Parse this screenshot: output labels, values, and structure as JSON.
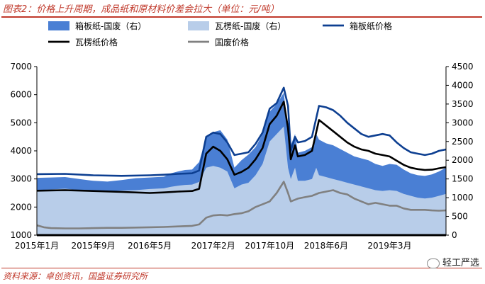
{
  "title": "图表2：价格上升周期，成品纸和原材料价差会拉大（单位：元/吨）",
  "source": "资料来源：卓创资讯，国盛证券研究所",
  "watermark": "轻工严选",
  "chart_data": {
    "type": "line",
    "x_months_from": "2015-01",
    "x_months_to": "2019-11",
    "x_ticks": [
      {
        "label": "2015年1月",
        "m": 0
      },
      {
        "label": "2015年9月",
        "m": 8
      },
      {
        "label": "2016年5月",
        "m": 16
      },
      {
        "label": "2017年2月",
        "m": 25
      },
      {
        "label": "2017年10月",
        "m": 33
      },
      {
        "label": "2018年6月",
        "m": 41
      },
      {
        "label": "2019年3月",
        "m": 50
      }
    ],
    "y_left": {
      "min": 1000,
      "max": 7000,
      "ticks": [
        1000,
        2000,
        3000,
        4000,
        5000,
        6000,
        7000
      ]
    },
    "y_right": {
      "min": 0,
      "max": 4500,
      "ticks": [
        0,
        500,
        1000,
        1500,
        2000,
        2500,
        3000,
        3500,
        4000,
        4500
      ]
    },
    "legend": {
      "placement": "top",
      "entries": [
        "箱板纸-国废（右）",
        "瓦楞纸-国废（右）",
        "箱板纸价格",
        "瓦楞纸价格",
        "国废价格"
      ]
    },
    "series": [
      {
        "name": "箱板纸-国废（右）",
        "kind": "area",
        "axis": "right",
        "color": "#4a7fd4",
        "points": [
          [
            0,
            1530
          ],
          [
            2,
            1540
          ],
          [
            4,
            1550
          ],
          [
            6,
            1500
          ],
          [
            8,
            1450
          ],
          [
            10,
            1430
          ],
          [
            12,
            1470
          ],
          [
            14,
            1520
          ],
          [
            16,
            1540
          ],
          [
            18,
            1560
          ],
          [
            19,
            1650
          ],
          [
            20,
            1700
          ],
          [
            21,
            1740
          ],
          [
            22,
            1750
          ],
          [
            23,
            1950
          ],
          [
            24,
            2600
          ],
          [
            25,
            2750
          ],
          [
            26,
            2800
          ],
          [
            27,
            2550
          ],
          [
            28,
            1800
          ],
          [
            29,
            2000
          ],
          [
            30,
            2150
          ],
          [
            31,
            2350
          ],
          [
            32,
            2700
          ],
          [
            33,
            3300
          ],
          [
            34,
            3500
          ],
          [
            35,
            3800
          ],
          [
            35.6,
            2800
          ],
          [
            36,
            2400
          ],
          [
            36.6,
            2700
          ],
          [
            37,
            2200
          ],
          [
            38,
            2250
          ],
          [
            39,
            2350
          ],
          [
            39.6,
            2700
          ],
          [
            40,
            2550
          ],
          [
            41,
            2450
          ],
          [
            42,
            2400
          ],
          [
            43,
            2300
          ],
          [
            44,
            2200
          ],
          [
            45,
            2100
          ],
          [
            46,
            2050
          ],
          [
            47,
            2000
          ],
          [
            48,
            1900
          ],
          [
            49,
            1850
          ],
          [
            50,
            1900
          ],
          [
            51,
            1880
          ],
          [
            52,
            1750
          ],
          [
            53,
            1650
          ],
          [
            54,
            1600
          ],
          [
            55,
            1580
          ],
          [
            56,
            1620
          ],
          [
            57,
            1700
          ],
          [
            58,
            1800
          ]
        ]
      },
      {
        "name": "瓦楞纸-国废（右）",
        "kind": "area",
        "axis": "right",
        "color": "#b8cde9",
        "points": [
          [
            0,
            1200
          ],
          [
            2,
            1220
          ],
          [
            4,
            1240
          ],
          [
            6,
            1200
          ],
          [
            8,
            1180
          ],
          [
            10,
            1170
          ],
          [
            12,
            1190
          ],
          [
            14,
            1200
          ],
          [
            16,
            1230
          ],
          [
            18,
            1250
          ],
          [
            19,
            1290
          ],
          [
            20,
            1320
          ],
          [
            21,
            1340
          ],
          [
            22,
            1350
          ],
          [
            23,
            1420
          ],
          [
            24,
            1800
          ],
          [
            25,
            1850
          ],
          [
            26,
            1800
          ],
          [
            27,
            1700
          ],
          [
            28,
            1250
          ],
          [
            29,
            1350
          ],
          [
            30,
            1400
          ],
          [
            31,
            1600
          ],
          [
            32,
            1900
          ],
          [
            33,
            2500
          ],
          [
            34,
            2700
          ],
          [
            35,
            2900
          ],
          [
            35.6,
            1800
          ],
          [
            36,
            1500
          ],
          [
            36.6,
            1800
          ],
          [
            37,
            1450
          ],
          [
            38,
            1450
          ],
          [
            39,
            1500
          ],
          [
            39.6,
            1800
          ],
          [
            40,
            1600
          ],
          [
            41,
            1550
          ],
          [
            42,
            1500
          ],
          [
            43,
            1450
          ],
          [
            44,
            1400
          ],
          [
            45,
            1350
          ],
          [
            46,
            1300
          ],
          [
            47,
            1250
          ],
          [
            48,
            1200
          ],
          [
            49,
            1180
          ],
          [
            50,
            1200
          ],
          [
            51,
            1180
          ],
          [
            52,
            1100
          ],
          [
            53,
            1050
          ],
          [
            54,
            1000
          ],
          [
            55,
            980
          ],
          [
            56,
            1000
          ],
          [
            57,
            1050
          ],
          [
            58,
            1100
          ]
        ]
      },
      {
        "name": "箱板纸价格",
        "kind": "line",
        "axis": "left",
        "color": "#0d3f91",
        "points": [
          [
            0,
            3170
          ],
          [
            4,
            3180
          ],
          [
            8,
            3130
          ],
          [
            12,
            3110
          ],
          [
            16,
            3130
          ],
          [
            18,
            3150
          ],
          [
            20,
            3180
          ],
          [
            22,
            3200
          ],
          [
            23,
            3300
          ],
          [
            24,
            4500
          ],
          [
            25,
            4650
          ],
          [
            26,
            4600
          ],
          [
            27,
            4300
          ],
          [
            28,
            3850
          ],
          [
            29,
            3900
          ],
          [
            30,
            3950
          ],
          [
            31,
            4250
          ],
          [
            32,
            4650
          ],
          [
            33,
            5500
          ],
          [
            34,
            5700
          ],
          [
            35,
            6250
          ],
          [
            35.6,
            5600
          ],
          [
            36,
            4000
          ],
          [
            36.6,
            4500
          ],
          [
            37,
            4300
          ],
          [
            38,
            4350
          ],
          [
            39,
            4500
          ],
          [
            40,
            5600
          ],
          [
            41,
            5550
          ],
          [
            42,
            5450
          ],
          [
            43,
            5250
          ],
          [
            44,
            5000
          ],
          [
            45,
            4800
          ],
          [
            46,
            4600
          ],
          [
            47,
            4500
          ],
          [
            48,
            4550
          ],
          [
            49,
            4600
          ],
          [
            50,
            4550
          ],
          [
            51,
            4300
          ],
          [
            52,
            4100
          ],
          [
            53,
            3950
          ],
          [
            54,
            3900
          ],
          [
            55,
            3850
          ],
          [
            56,
            3900
          ],
          [
            57,
            4000
          ],
          [
            58,
            4050
          ]
        ]
      },
      {
        "name": "瓦楞纸价格",
        "kind": "line",
        "axis": "left",
        "color": "#000000",
        "points": [
          [
            0,
            2580
          ],
          [
            4,
            2600
          ],
          [
            8,
            2570
          ],
          [
            12,
            2540
          ],
          [
            16,
            2500
          ],
          [
            18,
            2520
          ],
          [
            20,
            2550
          ],
          [
            22,
            2570
          ],
          [
            23,
            2650
          ],
          [
            24,
            3900
          ],
          [
            25,
            4150
          ],
          [
            26,
            4000
          ],
          [
            27,
            3700
          ],
          [
            28,
            3150
          ],
          [
            29,
            3250
          ],
          [
            30,
            3400
          ],
          [
            31,
            3700
          ],
          [
            32,
            4100
          ],
          [
            33,
            4950
          ],
          [
            34,
            5250
          ],
          [
            35,
            5750
          ],
          [
            35.6,
            4800
          ],
          [
            36,
            3700
          ],
          [
            36.6,
            4200
          ],
          [
            37,
            3800
          ],
          [
            38,
            3850
          ],
          [
            39,
            4000
          ],
          [
            40,
            5100
          ],
          [
            41,
            4900
          ],
          [
            42,
            4700
          ],
          [
            43,
            4500
          ],
          [
            44,
            4300
          ],
          [
            45,
            4150
          ],
          [
            46,
            4050
          ],
          [
            47,
            4000
          ],
          [
            48,
            3900
          ],
          [
            49,
            3850
          ],
          [
            50,
            3800
          ],
          [
            51,
            3650
          ],
          [
            52,
            3500
          ],
          [
            53,
            3400
          ],
          [
            54,
            3350
          ],
          [
            55,
            3320
          ],
          [
            56,
            3330
          ],
          [
            57,
            3380
          ],
          [
            58,
            3420
          ]
        ]
      },
      {
        "name": "国废价格",
        "kind": "line",
        "axis": "left",
        "color": "#808080",
        "points": [
          [
            0,
            1350
          ],
          [
            1,
            1280
          ],
          [
            2,
            1250
          ],
          [
            4,
            1240
          ],
          [
            6,
            1240
          ],
          [
            8,
            1250
          ],
          [
            10,
            1260
          ],
          [
            12,
            1260
          ],
          [
            14,
            1270
          ],
          [
            16,
            1280
          ],
          [
            18,
            1290
          ],
          [
            20,
            1310
          ],
          [
            22,
            1330
          ],
          [
            23,
            1380
          ],
          [
            24,
            1620
          ],
          [
            25,
            1700
          ],
          [
            26,
            1720
          ],
          [
            27,
            1700
          ],
          [
            28,
            1750
          ],
          [
            29,
            1780
          ],
          [
            30,
            1850
          ],
          [
            31,
            2000
          ],
          [
            32,
            2100
          ],
          [
            33,
            2200
          ],
          [
            34,
            2500
          ],
          [
            35,
            2900
          ],
          [
            35.6,
            2500
          ],
          [
            36,
            2200
          ],
          [
            37,
            2300
          ],
          [
            38,
            2350
          ],
          [
            39,
            2400
          ],
          [
            40,
            2500
          ],
          [
            41,
            2550
          ],
          [
            42,
            2600
          ],
          [
            43,
            2500
          ],
          [
            44,
            2450
          ],
          [
            45,
            2300
          ],
          [
            46,
            2200
          ],
          [
            47,
            2100
          ],
          [
            48,
            2150
          ],
          [
            49,
            2100
          ],
          [
            50,
            2050
          ],
          [
            51,
            2050
          ],
          [
            52,
            1950
          ],
          [
            53,
            1900
          ],
          [
            54,
            1900
          ],
          [
            55,
            1900
          ],
          [
            56,
            1880
          ],
          [
            57,
            1870
          ],
          [
            58,
            1880
          ]
        ]
      }
    ]
  }
}
